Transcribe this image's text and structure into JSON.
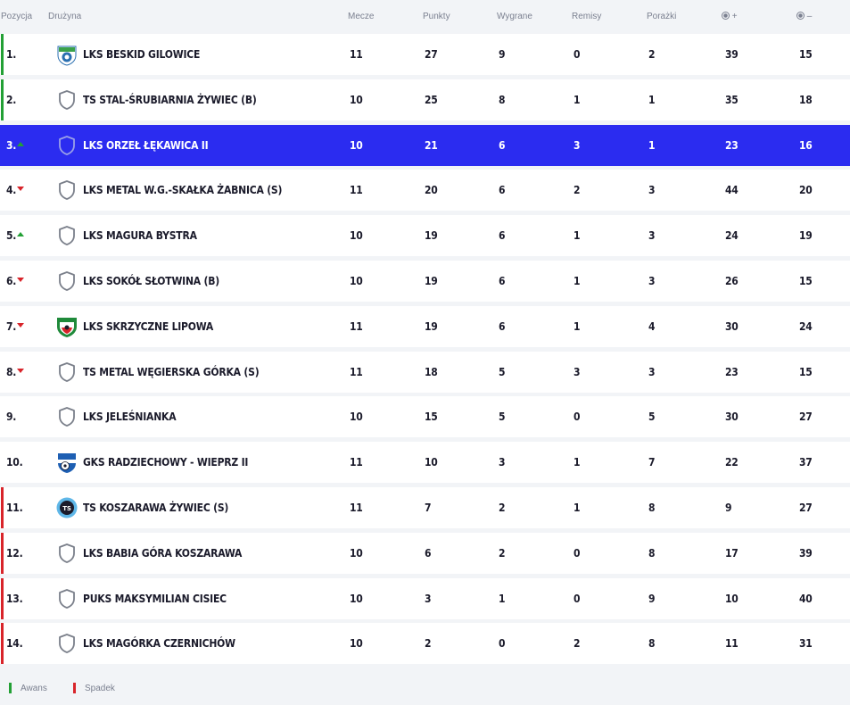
{
  "headers": {
    "position": "Pozycja",
    "team": "Drużyna",
    "matches": "Mecze",
    "points": "Punkty",
    "wins": "Wygrane",
    "draws": "Remisy",
    "losses": "Porażki",
    "goals_for": "+",
    "goals_against": "–"
  },
  "rows": [
    {
      "pos": "1.",
      "trend": "none",
      "zone": "promo",
      "crest": "crest-beskid",
      "name": "LKS Beskid Gilowice",
      "m": "11",
      "p": "27",
      "w": "9",
      "d": "0",
      "l": "2",
      "gf": "39",
      "ga": "15"
    },
    {
      "pos": "2.",
      "trend": "none",
      "zone": "promo",
      "crest": "shield",
      "name": "TS Stal-Śrubiarnia Żywiec (B)",
      "m": "10",
      "p": "25",
      "w": "8",
      "d": "1",
      "l": "1",
      "gf": "35",
      "ga": "18"
    },
    {
      "pos": "3.",
      "trend": "up",
      "zone": "none",
      "crest": "shield",
      "name": "LKS Orzeł Łękawica II",
      "m": "10",
      "p": "21",
      "w": "6",
      "d": "3",
      "l": "1",
      "gf": "23",
      "ga": "16",
      "highlight": true
    },
    {
      "pos": "4.",
      "trend": "down",
      "zone": "none",
      "crest": "shield",
      "name": "LKS Metal W.G.-Skałka Żabnica (S)",
      "m": "11",
      "p": "20",
      "w": "6",
      "d": "2",
      "l": "3",
      "gf": "44",
      "ga": "20"
    },
    {
      "pos": "5.",
      "trend": "up",
      "zone": "none",
      "crest": "shield",
      "name": "LKS Magura Bystra",
      "m": "10",
      "p": "19",
      "w": "6",
      "d": "1",
      "l": "3",
      "gf": "24",
      "ga": "19"
    },
    {
      "pos": "6.",
      "trend": "down",
      "zone": "none",
      "crest": "shield",
      "name": "LKS Sokół Słotwina (B)",
      "m": "10",
      "p": "19",
      "w": "6",
      "d": "1",
      "l": "3",
      "gf": "26",
      "ga": "15"
    },
    {
      "pos": "7.",
      "trend": "down",
      "zone": "none",
      "crest": "crest-skrzyczne",
      "name": "LKS Skrzyczne Lipowa",
      "m": "11",
      "p": "19",
      "w": "6",
      "d": "1",
      "l": "4",
      "gf": "30",
      "ga": "24"
    },
    {
      "pos": "8.",
      "trend": "down",
      "zone": "none",
      "crest": "shield",
      "name": "TS Metal Węgierska Górka (S)",
      "m": "11",
      "p": "18",
      "w": "5",
      "d": "3",
      "l": "3",
      "gf": "23",
      "ga": "15"
    },
    {
      "pos": "9.",
      "trend": "none",
      "zone": "none",
      "crest": "shield",
      "name": "LKS Jeleśnianka",
      "m": "10",
      "p": "15",
      "w": "5",
      "d": "0",
      "l": "5",
      "gf": "30",
      "ga": "27"
    },
    {
      "pos": "10.",
      "trend": "none",
      "zone": "none",
      "crest": "crest-radziechowy",
      "name": "GKS Radziechowy - Wieprz II",
      "m": "11",
      "p": "10",
      "w": "3",
      "d": "1",
      "l": "7",
      "gf": "22",
      "ga": "37"
    },
    {
      "pos": "11.",
      "trend": "none",
      "zone": "releg",
      "crest": "crest-koszarawa",
      "name": "TS Koszarawa Żywiec (S)",
      "m": "11",
      "p": "7",
      "w": "2",
      "d": "1",
      "l": "8",
      "gf": "9",
      "ga": "27"
    },
    {
      "pos": "12.",
      "trend": "none",
      "zone": "releg",
      "crest": "shield",
      "name": "LKS Babia Góra Koszarawa",
      "m": "10",
      "p": "6",
      "w": "2",
      "d": "0",
      "l": "8",
      "gf": "17",
      "ga": "39"
    },
    {
      "pos": "13.",
      "trend": "none",
      "zone": "releg",
      "crest": "shield",
      "name": "PUKS Maksymilian Cisiec",
      "m": "10",
      "p": "3",
      "w": "1",
      "d": "0",
      "l": "9",
      "gf": "10",
      "ga": "40"
    },
    {
      "pos": "14.",
      "trend": "none",
      "zone": "releg",
      "crest": "shield",
      "name": "LKS Magórka Czernichów",
      "m": "10",
      "p": "2",
      "w": "0",
      "d": "2",
      "l": "8",
      "gf": "11",
      "ga": "31"
    }
  ],
  "legend": {
    "promotion": "Awans",
    "relegation": "Spadek"
  },
  "colors": {
    "highlight": "#2b2cf0",
    "promotion": "#23a035",
    "relegation": "#d8242a"
  }
}
